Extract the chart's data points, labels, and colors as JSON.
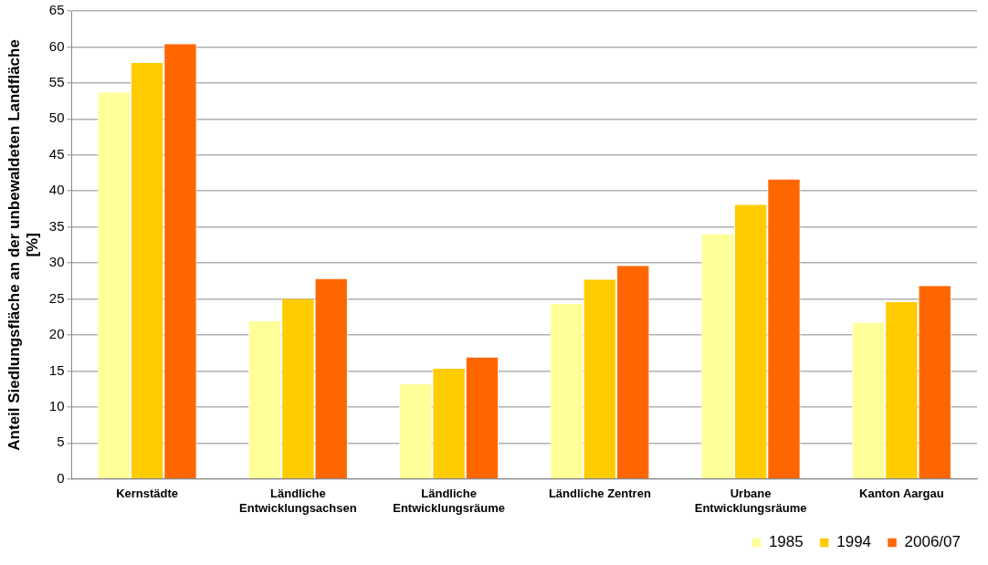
{
  "chart_data": {
    "type": "bar",
    "ylabel": "Anteil Siedlungsfläche an der unbewaldeten Landfläche [%]",
    "categories": [
      "Kernstädte",
      "Ländliche Entwicklungsachsen",
      "Ländliche Entwicklungsräume",
      "Ländliche Zentren",
      "Urbane Entwicklungsräume",
      "Kanton Aargau"
    ],
    "series": [
      {
        "name": "1985",
        "color": "#ffff99",
        "values": [
          53.7,
          21.9,
          13.2,
          24.3,
          34.0,
          21.7
        ]
      },
      {
        "name": "1994",
        "color": "#ffcc00",
        "values": [
          57.8,
          25.0,
          15.3,
          27.7,
          38.1,
          24.6
        ]
      },
      {
        "name": "2006/07",
        "color": "#ff6600",
        "values": [
          60.4,
          27.8,
          16.9,
          29.6,
          41.6,
          26.8
        ]
      }
    ],
    "ylim": [
      0,
      65
    ],
    "yticks": [
      0,
      5,
      10,
      15,
      20,
      25,
      30,
      35,
      40,
      45,
      50,
      55,
      60,
      65
    ],
    "grid": "y",
    "legend": "bottom right"
  }
}
